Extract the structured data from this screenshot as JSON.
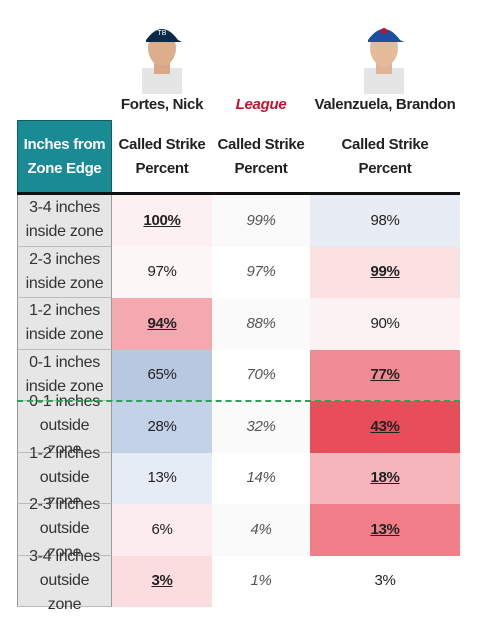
{
  "columns": [
    "Fortes, Nick",
    "League",
    "Valenzuela, Brandon"
  ],
  "table": {
    "header": [
      "Inches from Zone Edge",
      "Called Strike Percent",
      "Called Strike Percent",
      "Called Strike Percent"
    ],
    "rows": [
      [
        "3-4 inches inside zone",
        "100%",
        "99%",
        "98%"
      ],
      [
        "2-3 inches inside zone",
        "97%",
        "97%",
        "99%"
      ],
      [
        "1-2 inches inside zone",
        "94%",
        "88%",
        "90%"
      ],
      [
        "0-1 inches inside zone",
        "65%",
        "70%",
        "77%"
      ],
      [
        "0-1 inches outside zone",
        "28%",
        "32%",
        "43%"
      ],
      [
        "1-2 inches outside zone",
        "13%",
        "14%",
        "18%"
      ],
      [
        "2-3 inches outside zone",
        "6%",
        "4%",
        "13%"
      ],
      [
        "3-4 inches outside zone",
        "3%",
        "1%",
        "3%"
      ]
    ]
  }
}
